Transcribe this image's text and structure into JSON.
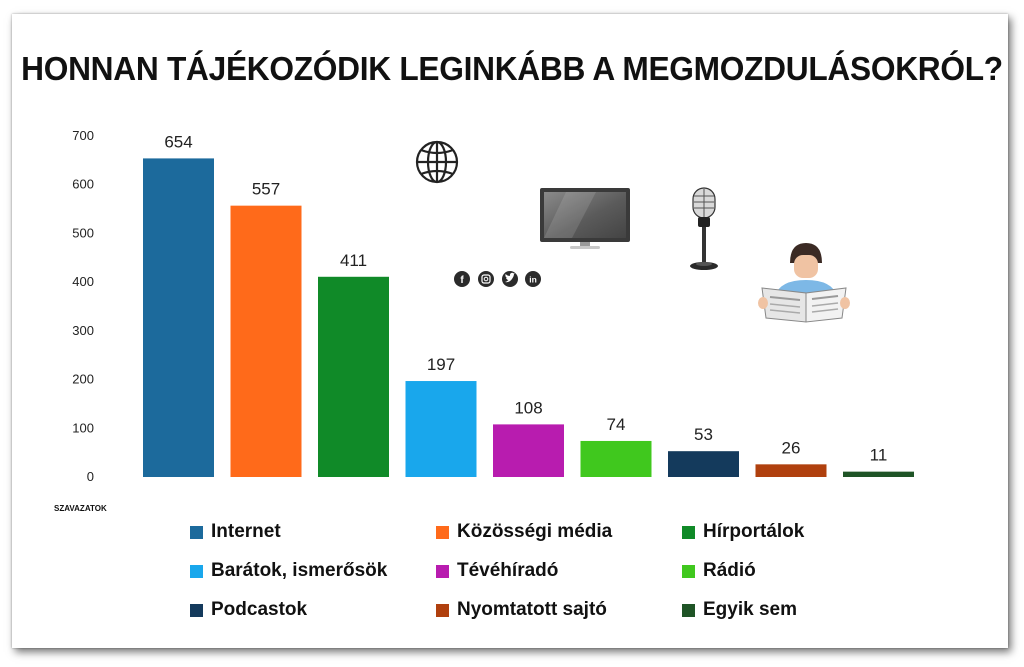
{
  "title": "HONNAN TÁJÉKOZÓDIK LEGINKÁBB A MEGMOZDULÁSOKRÓL?",
  "chart_data": {
    "type": "bar",
    "title": "HONNAN TÁJÉKOZÓDIK LEGINKÁBB A MEGMOZDULÁSOKRÓL?",
    "ylabel": "SZAVAZATOK",
    "xlabel": "",
    "ylim": [
      0,
      700
    ],
    "yticks": [
      "700",
      "600",
      "500",
      "400",
      "300",
      "200",
      "100",
      "0"
    ],
    "grid": false,
    "legend_position": "bottom",
    "categories": [
      "Internet",
      "Közösségi média",
      "Hírportálok",
      "Barátok, ismerősök",
      "Tévéhíradó",
      "Rádió",
      "Podcastok",
      "Nyomtatott sajtó",
      "Egyik sem"
    ],
    "values": [
      654,
      557,
      411,
      197,
      108,
      74,
      53,
      26,
      11
    ],
    "colors": [
      "#1c6a9c",
      "#ff6a1a",
      "#108a28",
      "#19a7ec",
      "#b81caf",
      "#40c81e",
      "#143a5c",
      "#b0400e",
      "#1f5426"
    ]
  },
  "icons": [
    "globe-icon",
    "tv-icon",
    "microphone-icon",
    "newspaper-reader-icon",
    "facebook-icon",
    "instagram-icon",
    "twitter-icon",
    "linkedin-icon"
  ]
}
